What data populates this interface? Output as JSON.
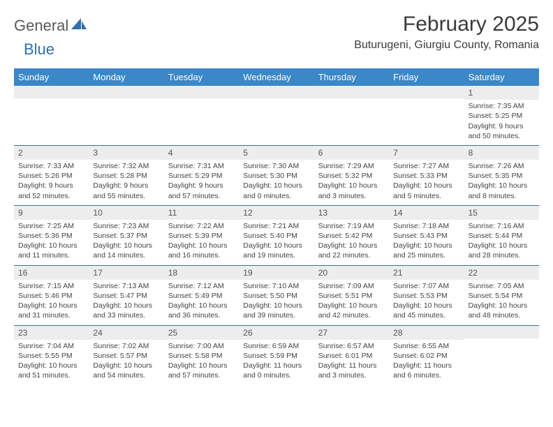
{
  "brand": {
    "part1": "General",
    "part2": "Blue"
  },
  "title": "February 2025",
  "location": "Buturugeni, Giurgiu County, Romania",
  "colors": {
    "header_bg": "#3b87c8",
    "header_text": "#ffffff",
    "daynum_bg": "#ededed",
    "rule": "#3b6fa0",
    "brand_gray": "#5a5a5a",
    "brand_blue": "#2f6fb0"
  },
  "day_labels": [
    "Sunday",
    "Monday",
    "Tuesday",
    "Wednesday",
    "Thursday",
    "Friday",
    "Saturday"
  ],
  "weeks": [
    [
      {
        "n": "",
        "sr": "",
        "ss": "",
        "dl": ""
      },
      {
        "n": "",
        "sr": "",
        "ss": "",
        "dl": ""
      },
      {
        "n": "",
        "sr": "",
        "ss": "",
        "dl": ""
      },
      {
        "n": "",
        "sr": "",
        "ss": "",
        "dl": ""
      },
      {
        "n": "",
        "sr": "",
        "ss": "",
        "dl": ""
      },
      {
        "n": "",
        "sr": "",
        "ss": "",
        "dl": ""
      },
      {
        "n": "1",
        "sr": "Sunrise: 7:35 AM",
        "ss": "Sunset: 5:25 PM",
        "dl": "Daylight: 9 hours and 50 minutes."
      }
    ],
    [
      {
        "n": "2",
        "sr": "Sunrise: 7:33 AM",
        "ss": "Sunset: 5:26 PM",
        "dl": "Daylight: 9 hours and 52 minutes."
      },
      {
        "n": "3",
        "sr": "Sunrise: 7:32 AM",
        "ss": "Sunset: 5:28 PM",
        "dl": "Daylight: 9 hours and 55 minutes."
      },
      {
        "n": "4",
        "sr": "Sunrise: 7:31 AM",
        "ss": "Sunset: 5:29 PM",
        "dl": "Daylight: 9 hours and 57 minutes."
      },
      {
        "n": "5",
        "sr": "Sunrise: 7:30 AM",
        "ss": "Sunset: 5:30 PM",
        "dl": "Daylight: 10 hours and 0 minutes."
      },
      {
        "n": "6",
        "sr": "Sunrise: 7:29 AM",
        "ss": "Sunset: 5:32 PM",
        "dl": "Daylight: 10 hours and 3 minutes."
      },
      {
        "n": "7",
        "sr": "Sunrise: 7:27 AM",
        "ss": "Sunset: 5:33 PM",
        "dl": "Daylight: 10 hours and 5 minutes."
      },
      {
        "n": "8",
        "sr": "Sunrise: 7:26 AM",
        "ss": "Sunset: 5:35 PM",
        "dl": "Daylight: 10 hours and 8 minutes."
      }
    ],
    [
      {
        "n": "9",
        "sr": "Sunrise: 7:25 AM",
        "ss": "Sunset: 5:36 PM",
        "dl": "Daylight: 10 hours and 11 minutes."
      },
      {
        "n": "10",
        "sr": "Sunrise: 7:23 AM",
        "ss": "Sunset: 5:37 PM",
        "dl": "Daylight: 10 hours and 14 minutes."
      },
      {
        "n": "11",
        "sr": "Sunrise: 7:22 AM",
        "ss": "Sunset: 5:39 PM",
        "dl": "Daylight: 10 hours and 16 minutes."
      },
      {
        "n": "12",
        "sr": "Sunrise: 7:21 AM",
        "ss": "Sunset: 5:40 PM",
        "dl": "Daylight: 10 hours and 19 minutes."
      },
      {
        "n": "13",
        "sr": "Sunrise: 7:19 AM",
        "ss": "Sunset: 5:42 PM",
        "dl": "Daylight: 10 hours and 22 minutes."
      },
      {
        "n": "14",
        "sr": "Sunrise: 7:18 AM",
        "ss": "Sunset: 5:43 PM",
        "dl": "Daylight: 10 hours and 25 minutes."
      },
      {
        "n": "15",
        "sr": "Sunrise: 7:16 AM",
        "ss": "Sunset: 5:44 PM",
        "dl": "Daylight: 10 hours and 28 minutes."
      }
    ],
    [
      {
        "n": "16",
        "sr": "Sunrise: 7:15 AM",
        "ss": "Sunset: 5:46 PM",
        "dl": "Daylight: 10 hours and 31 minutes."
      },
      {
        "n": "17",
        "sr": "Sunrise: 7:13 AM",
        "ss": "Sunset: 5:47 PM",
        "dl": "Daylight: 10 hours and 33 minutes."
      },
      {
        "n": "18",
        "sr": "Sunrise: 7:12 AM",
        "ss": "Sunset: 5:49 PM",
        "dl": "Daylight: 10 hours and 36 minutes."
      },
      {
        "n": "19",
        "sr": "Sunrise: 7:10 AM",
        "ss": "Sunset: 5:50 PM",
        "dl": "Daylight: 10 hours and 39 minutes."
      },
      {
        "n": "20",
        "sr": "Sunrise: 7:09 AM",
        "ss": "Sunset: 5:51 PM",
        "dl": "Daylight: 10 hours and 42 minutes."
      },
      {
        "n": "21",
        "sr": "Sunrise: 7:07 AM",
        "ss": "Sunset: 5:53 PM",
        "dl": "Daylight: 10 hours and 45 minutes."
      },
      {
        "n": "22",
        "sr": "Sunrise: 7:05 AM",
        "ss": "Sunset: 5:54 PM",
        "dl": "Daylight: 10 hours and 48 minutes."
      }
    ],
    [
      {
        "n": "23",
        "sr": "Sunrise: 7:04 AM",
        "ss": "Sunset: 5:55 PM",
        "dl": "Daylight: 10 hours and 51 minutes."
      },
      {
        "n": "24",
        "sr": "Sunrise: 7:02 AM",
        "ss": "Sunset: 5:57 PM",
        "dl": "Daylight: 10 hours and 54 minutes."
      },
      {
        "n": "25",
        "sr": "Sunrise: 7:00 AM",
        "ss": "Sunset: 5:58 PM",
        "dl": "Daylight: 10 hours and 57 minutes."
      },
      {
        "n": "26",
        "sr": "Sunrise: 6:59 AM",
        "ss": "Sunset: 5:59 PM",
        "dl": "Daylight: 11 hours and 0 minutes."
      },
      {
        "n": "27",
        "sr": "Sunrise: 6:57 AM",
        "ss": "Sunset: 6:01 PM",
        "dl": "Daylight: 11 hours and 3 minutes."
      },
      {
        "n": "28",
        "sr": "Sunrise: 6:55 AM",
        "ss": "Sunset: 6:02 PM",
        "dl": "Daylight: 11 hours and 6 minutes."
      },
      {
        "n": "",
        "sr": "",
        "ss": "",
        "dl": ""
      }
    ]
  ]
}
